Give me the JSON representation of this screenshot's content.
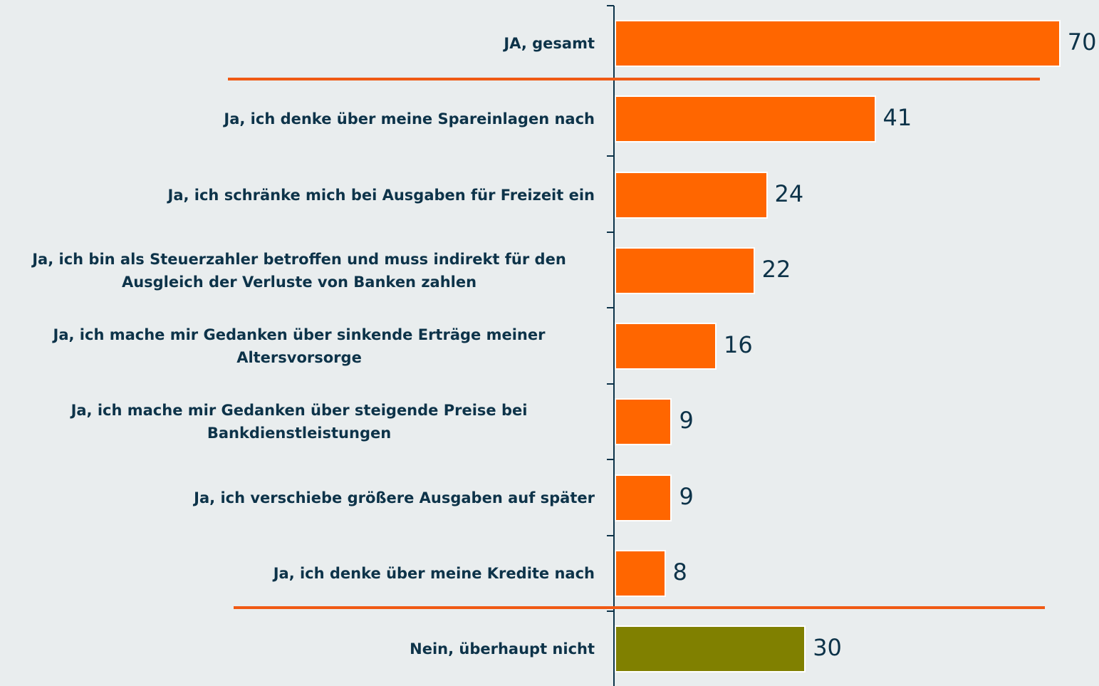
{
  "chart_data": {
    "type": "bar",
    "orientation": "horizontal",
    "categories": [
      "JA, gesamt",
      "Ja, ich denke über meine Spareinlagen nach",
      "Ja, ich schränke mich bei Ausgaben für Freizeit ein",
      "Ja, ich bin als Steuerzahler betroffen und muss indirekt für den Ausgleich der Verluste von Banken zahlen",
      "Ja, ich mache mir Gedanken über sinkende Erträge meiner Altersvorsorge",
      "Ja, ich mache mir Gedanken über steigende Preise bei Bankdienstleistungen",
      "Ja, ich verschiebe größere Ausgaben auf später",
      "Ja, ich denke über meine Kredite nach",
      "Nein, überhaupt nicht"
    ],
    "values": [
      70,
      41,
      24,
      22,
      16,
      9,
      9,
      8,
      30
    ],
    "colors": [
      "#ff6600",
      "#ff6600",
      "#ff6600",
      "#ff6600",
      "#ff6600",
      "#ff6600",
      "#ff6600",
      "#ff6600",
      "#808000"
    ]
  }
}
